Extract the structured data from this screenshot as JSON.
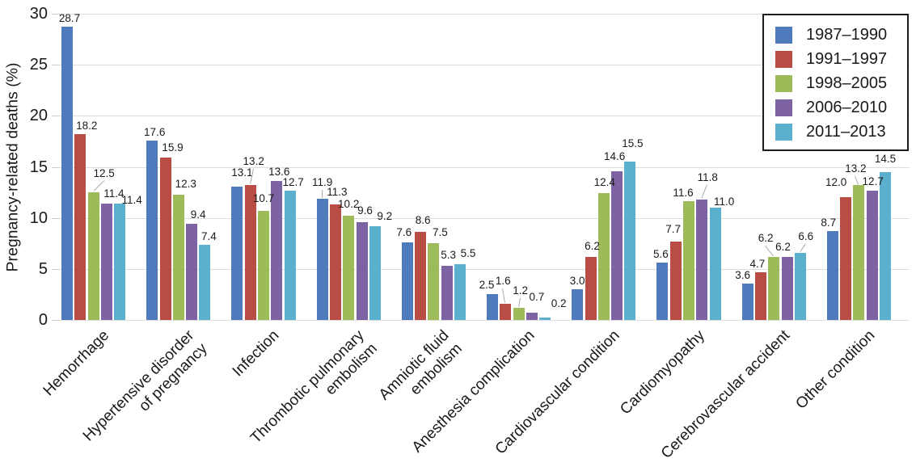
{
  "chart_data": {
    "type": "bar",
    "title": "",
    "xlabel": "",
    "ylabel": "Pregnancy-related deaths (%)",
    "ylim": [
      0,
      30
    ],
    "yticks": [
      0,
      5,
      10,
      15,
      20,
      25,
      30
    ],
    "grid": "horizontal",
    "legend_position": "top-right",
    "value_labels_shown": true,
    "categories": [
      "Hemorrhage",
      "Hypertensive disorder\nof pregnancy",
      "Infection",
      "Thrombotic pulmonary\nembolism",
      "Amniotic fluid\nembolism",
      "Anesthesia complication",
      "Cardiovascular condition",
      "Cardiomyopathy",
      "Cerebrovascular accident",
      "Other condition"
    ],
    "series": [
      {
        "name": "1987–1990",
        "color": "#4f7bbc",
        "values": [
          28.7,
          17.6,
          13.1,
          11.9,
          7.6,
          2.5,
          3.0,
          5.6,
          3.6,
          8.7
        ]
      },
      {
        "name": "1991–1997",
        "color": "#b94c45",
        "values": [
          18.2,
          15.9,
          13.2,
          11.3,
          8.6,
          1.6,
          6.2,
          7.7,
          4.7,
          12.0
        ]
      },
      {
        "name": "1998–2005",
        "color": "#9dbb59",
        "values": [
          12.5,
          12.3,
          10.7,
          10.2,
          7.5,
          1.2,
          12.4,
          11.6,
          6.2,
          13.2
        ]
      },
      {
        "name": "2006–2010",
        "color": "#7d62a4",
        "values": [
          11.4,
          9.4,
          13.6,
          9.6,
          5.3,
          0.7,
          14.6,
          11.8,
          6.2,
          12.7
        ]
      },
      {
        "name": "2011–2013",
        "color": "#5bb0cd",
        "values": [
          11.4,
          7.4,
          12.7,
          9.2,
          5.5,
          0.2,
          15.5,
          11.0,
          6.6,
          14.5
        ]
      }
    ],
    "colors": {
      "gridline": "#dedede",
      "leader_line": "#ababab",
      "text": "#1a1a1a",
      "legend_border": "#1c1c1c"
    }
  }
}
